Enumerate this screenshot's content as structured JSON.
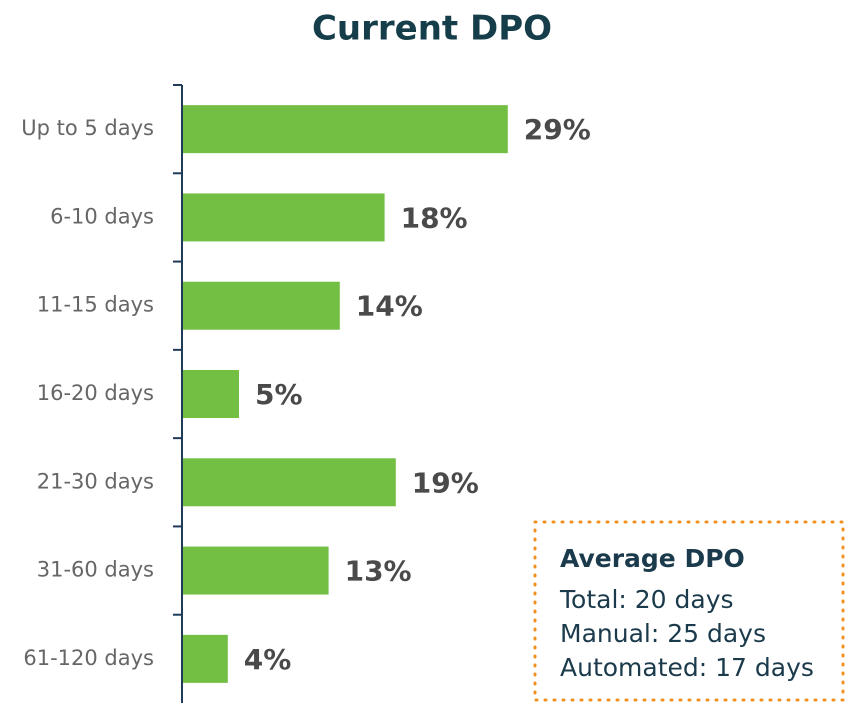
{
  "chart_data": {
    "type": "bar",
    "orientation": "horizontal",
    "title": "Current DPO",
    "categories": [
      "Up to 5 days",
      "6-10 days",
      "11-15 days",
      "16-20 days",
      "21-30 days",
      "31-60 days",
      "61-120 days"
    ],
    "values": [
      29,
      18,
      14,
      5,
      19,
      13,
      4
    ],
    "value_labels": [
      "29%",
      "18%",
      "14%",
      "5%",
      "19%",
      "13%",
      "4%"
    ],
    "color": "#72bf44",
    "annotation": {
      "title": "Average DPO",
      "lines": [
        "Total: 20 days",
        "Manual: 25 days",
        "Automated: 17 days"
      ],
      "border_color": "#f0901e"
    }
  }
}
